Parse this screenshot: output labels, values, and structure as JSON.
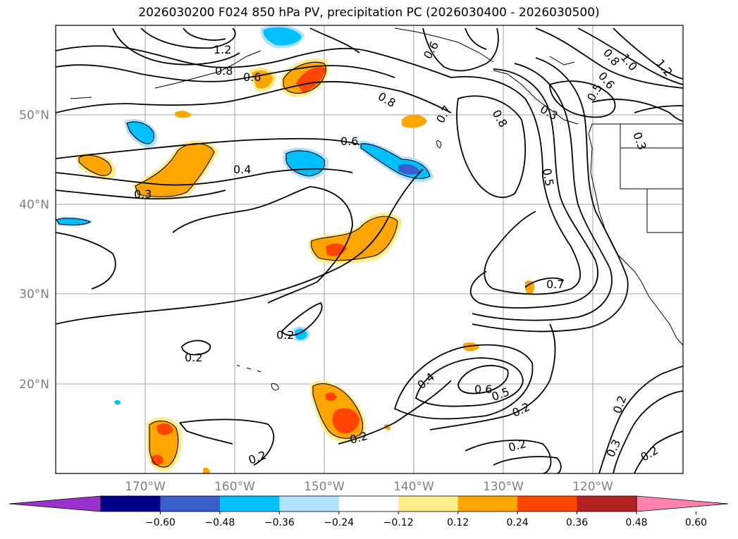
{
  "title": "2026030200 F024 850 hPa PV, precipitation PC (2026030400 - 2026030500)",
  "lat_labels": [
    "50°N",
    "40°N",
    "30°N",
    "20°N"
  ],
  "lon_labels": [
    "170°W",
    "160°W",
    "150°W",
    "140°W",
    "130°W",
    "120°W"
  ],
  "colorbar": {
    "ticks": [
      "−0.60",
      "−0.48",
      "−0.36",
      "−0.24",
      "−0.12",
      "0.12",
      "0.24",
      "0.36",
      "0.48",
      "0.60"
    ],
    "colors": [
      "#9932cc",
      "#00008b",
      "#3a5fcd",
      "#00bfff",
      "#b0e2ff",
      "#ffffff",
      "#ffec8b",
      "#ffa500",
      "#ff4500",
      "#b22222",
      "#ff82ab"
    ]
  },
  "contour_labels": [
    "1.2",
    "0.8",
    "0.6",
    "0.8",
    "0.6",
    "0.6",
    "0.7",
    "0.8",
    "0.5",
    "0.3",
    "0.4",
    "0.3",
    "0.7",
    "0.2",
    "0.2",
    "0.4",
    "0.6",
    "0.5",
    "0.2",
    "0.2",
    "0.2",
    "0.2",
    "0.2",
    "0.3",
    "0.2",
    "1.0",
    "1.2",
    "0.8",
    "0.3",
    "0.6",
    "0.5"
  ]
}
